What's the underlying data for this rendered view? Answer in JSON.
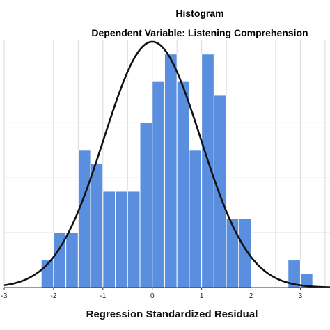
{
  "chart_data": {
    "type": "bar",
    "title": "Histogram",
    "subtitle": "Dependent Variable: Listening Comprehension",
    "xlabel": "Regression Standardized Residual",
    "ylabel": "",
    "xlim": [
      -3,
      3.6
    ],
    "ylim": [
      0,
      18
    ],
    "x_ticks": [
      -3,
      -2,
      -1,
      0,
      1,
      2,
      3
    ],
    "x_tick_labels": [
      "-3",
      "-2",
      "-1",
      "0",
      "1",
      "2",
      "3"
    ],
    "grid": true,
    "bin_width": 0.25,
    "bins": [
      {
        "x0": -2.25,
        "count": 2
      },
      {
        "x0": -2.0,
        "count": 4
      },
      {
        "x0": -1.75,
        "count": 4
      },
      {
        "x0": -1.5,
        "count": 10
      },
      {
        "x0": -1.25,
        "count": 9
      },
      {
        "x0": -1.0,
        "count": 7
      },
      {
        "x0": -0.75,
        "count": 7
      },
      {
        "x0": -0.5,
        "count": 7
      },
      {
        "x0": -0.25,
        "count": 12
      },
      {
        "x0": 0.0,
        "count": 15
      },
      {
        "x0": 0.25,
        "count": 17
      },
      {
        "x0": 0.5,
        "count": 15
      },
      {
        "x0": 0.75,
        "count": 10
      },
      {
        "x0": 1.0,
        "count": 17
      },
      {
        "x0": 1.25,
        "count": 14
      },
      {
        "x0": 1.5,
        "count": 5
      },
      {
        "x0": 1.75,
        "count": 5
      },
      {
        "x0": 2.75,
        "count": 2
      },
      {
        "x0": 3.0,
        "count": 1
      }
    ],
    "normal_curve": {
      "mean": 0.0,
      "std_dev": 0.98,
      "peak_count": 17.9
    },
    "bar_color": "#5a8fe0",
    "bar_edge_color": "#ffffff",
    "curve_color": "#111111",
    "grid_color": "#d9d9d9"
  }
}
